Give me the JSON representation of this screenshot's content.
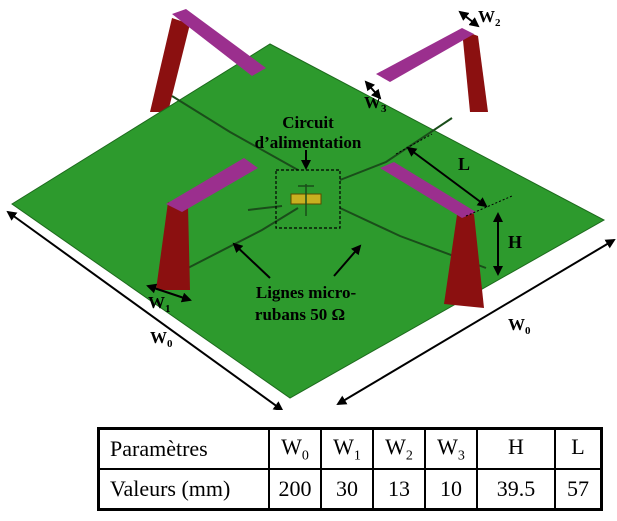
{
  "diagram": {
    "labels": {
      "circuit_line1": "Circuit",
      "circuit_line2": "d’alimentation",
      "lines_line1": "Lignes micro-",
      "lines_line2": "rubans 50 Ω",
      "L": "L",
      "H": "H",
      "W0_left": {
        "base": "W",
        "sub": "0"
      },
      "W0_right": {
        "base": "W",
        "sub": "0"
      },
      "W1": {
        "base": "W",
        "sub": "1"
      },
      "W2": {
        "base": "W",
        "sub": "2"
      },
      "W3": {
        "base": "W",
        "sub": "3"
      }
    },
    "colors": {
      "ground_plane": "#2d9a2d",
      "feed_lines": "#1a4d1a",
      "support_legs": "#8b1010",
      "patch_arms": "#9b2f8e",
      "feed_circuit": "#c8b020"
    }
  },
  "table": {
    "row_headers": [
      "Paramètres",
      "Valeurs (mm)"
    ],
    "params": [
      {
        "base": "W",
        "sub": "0"
      },
      {
        "base": "W",
        "sub": "1"
      },
      {
        "base": "W",
        "sub": "2"
      },
      {
        "base": "W",
        "sub": "3"
      },
      {
        "base": "H",
        "sub": ""
      },
      {
        "base": "L",
        "sub": ""
      }
    ],
    "values": [
      "200",
      "30",
      "13",
      "10",
      "39.5",
      "57"
    ]
  }
}
